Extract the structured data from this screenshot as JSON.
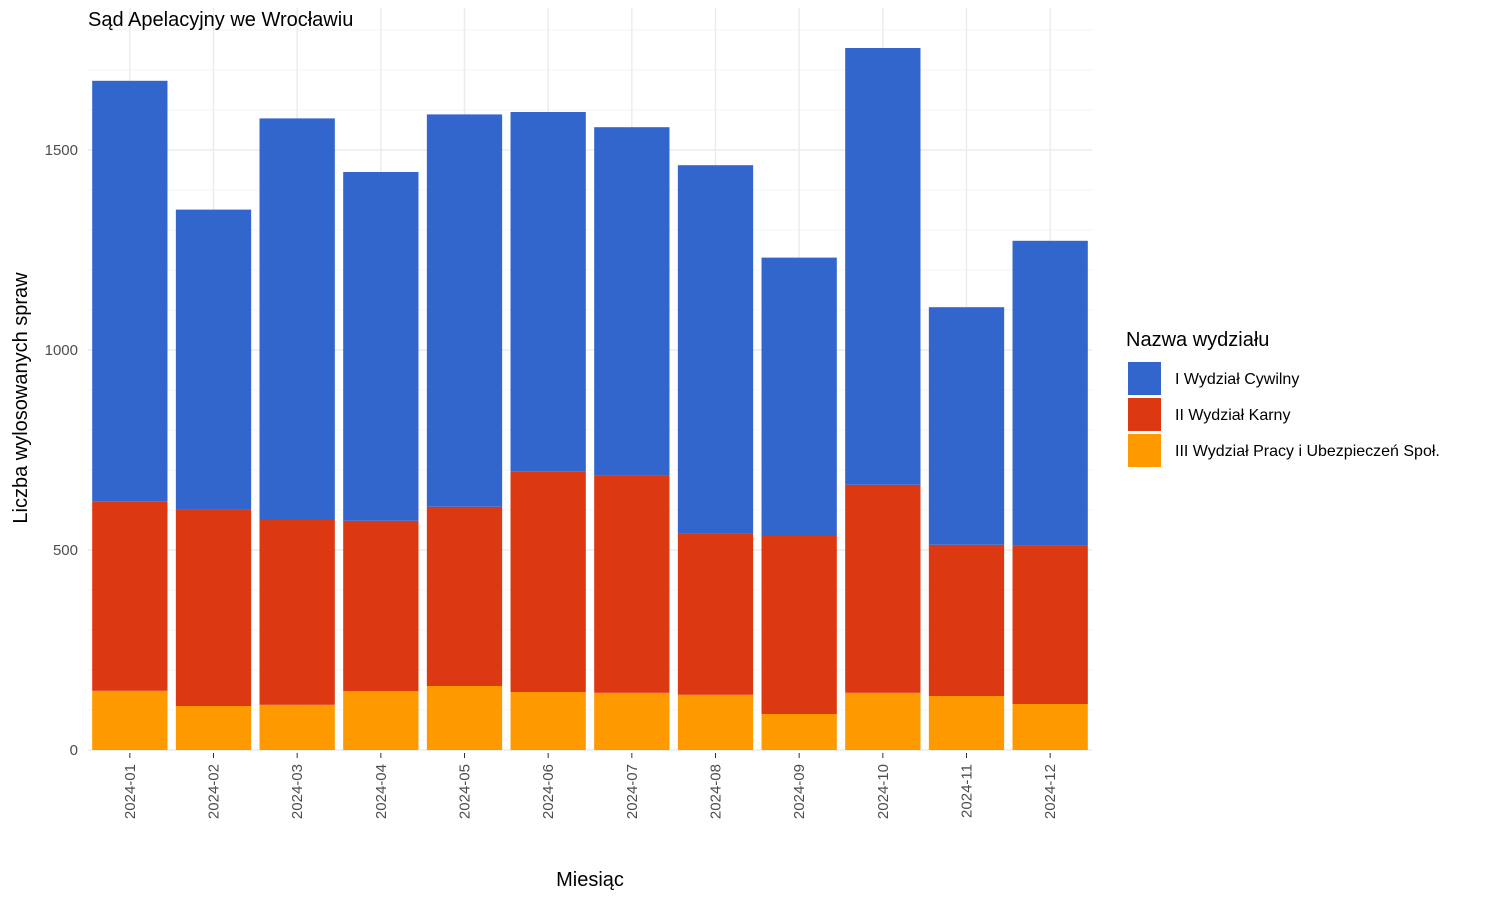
{
  "chart_data": {
    "type": "bar",
    "stacked": true,
    "title": "Sąd Apelacyjny we Wrocławiu",
    "xlabel": "Miesiąc",
    "ylabel": "Liczba wylosowanych spraw",
    "ylim": [
      0,
      1850
    ],
    "yticks": [
      0,
      500,
      1000,
      1500
    ],
    "grid": true,
    "legend_title": "Nazwa wydziału",
    "legend_position": "right",
    "categories": [
      "2024-01",
      "2024-02",
      "2024-03",
      "2024-04",
      "2024-05",
      "2024-06",
      "2024-07",
      "2024-08",
      "2024-09",
      "2024-10",
      "2024-11",
      "2024-12"
    ],
    "series": [
      {
        "name": "III Wydział Pracy i Ubezpieczeń Społ.",
        "color": "#FF9900",
        "values": [
          148,
          110,
          113,
          147,
          160,
          145,
          143,
          138,
          90,
          143,
          135,
          115
        ]
      },
      {
        "name": "II Wydział Karny",
        "color": "#DC3912",
        "values": [
          474,
          491,
          462,
          426,
          448,
          552,
          543,
          403,
          445,
          520,
          378,
          396
        ]
      },
      {
        "name": "I Wydział Cywilny",
        "color": "#3366CC",
        "values": [
          1051,
          750,
          1004,
          872,
          981,
          898,
          871,
          921,
          696,
          1092,
          594,
          762
        ]
      }
    ],
    "legend_order": [
      "I Wydział Cywilny",
      "II Wydział Karny",
      "III Wydział Pracy i Ubezpieczeń Społ."
    ]
  }
}
